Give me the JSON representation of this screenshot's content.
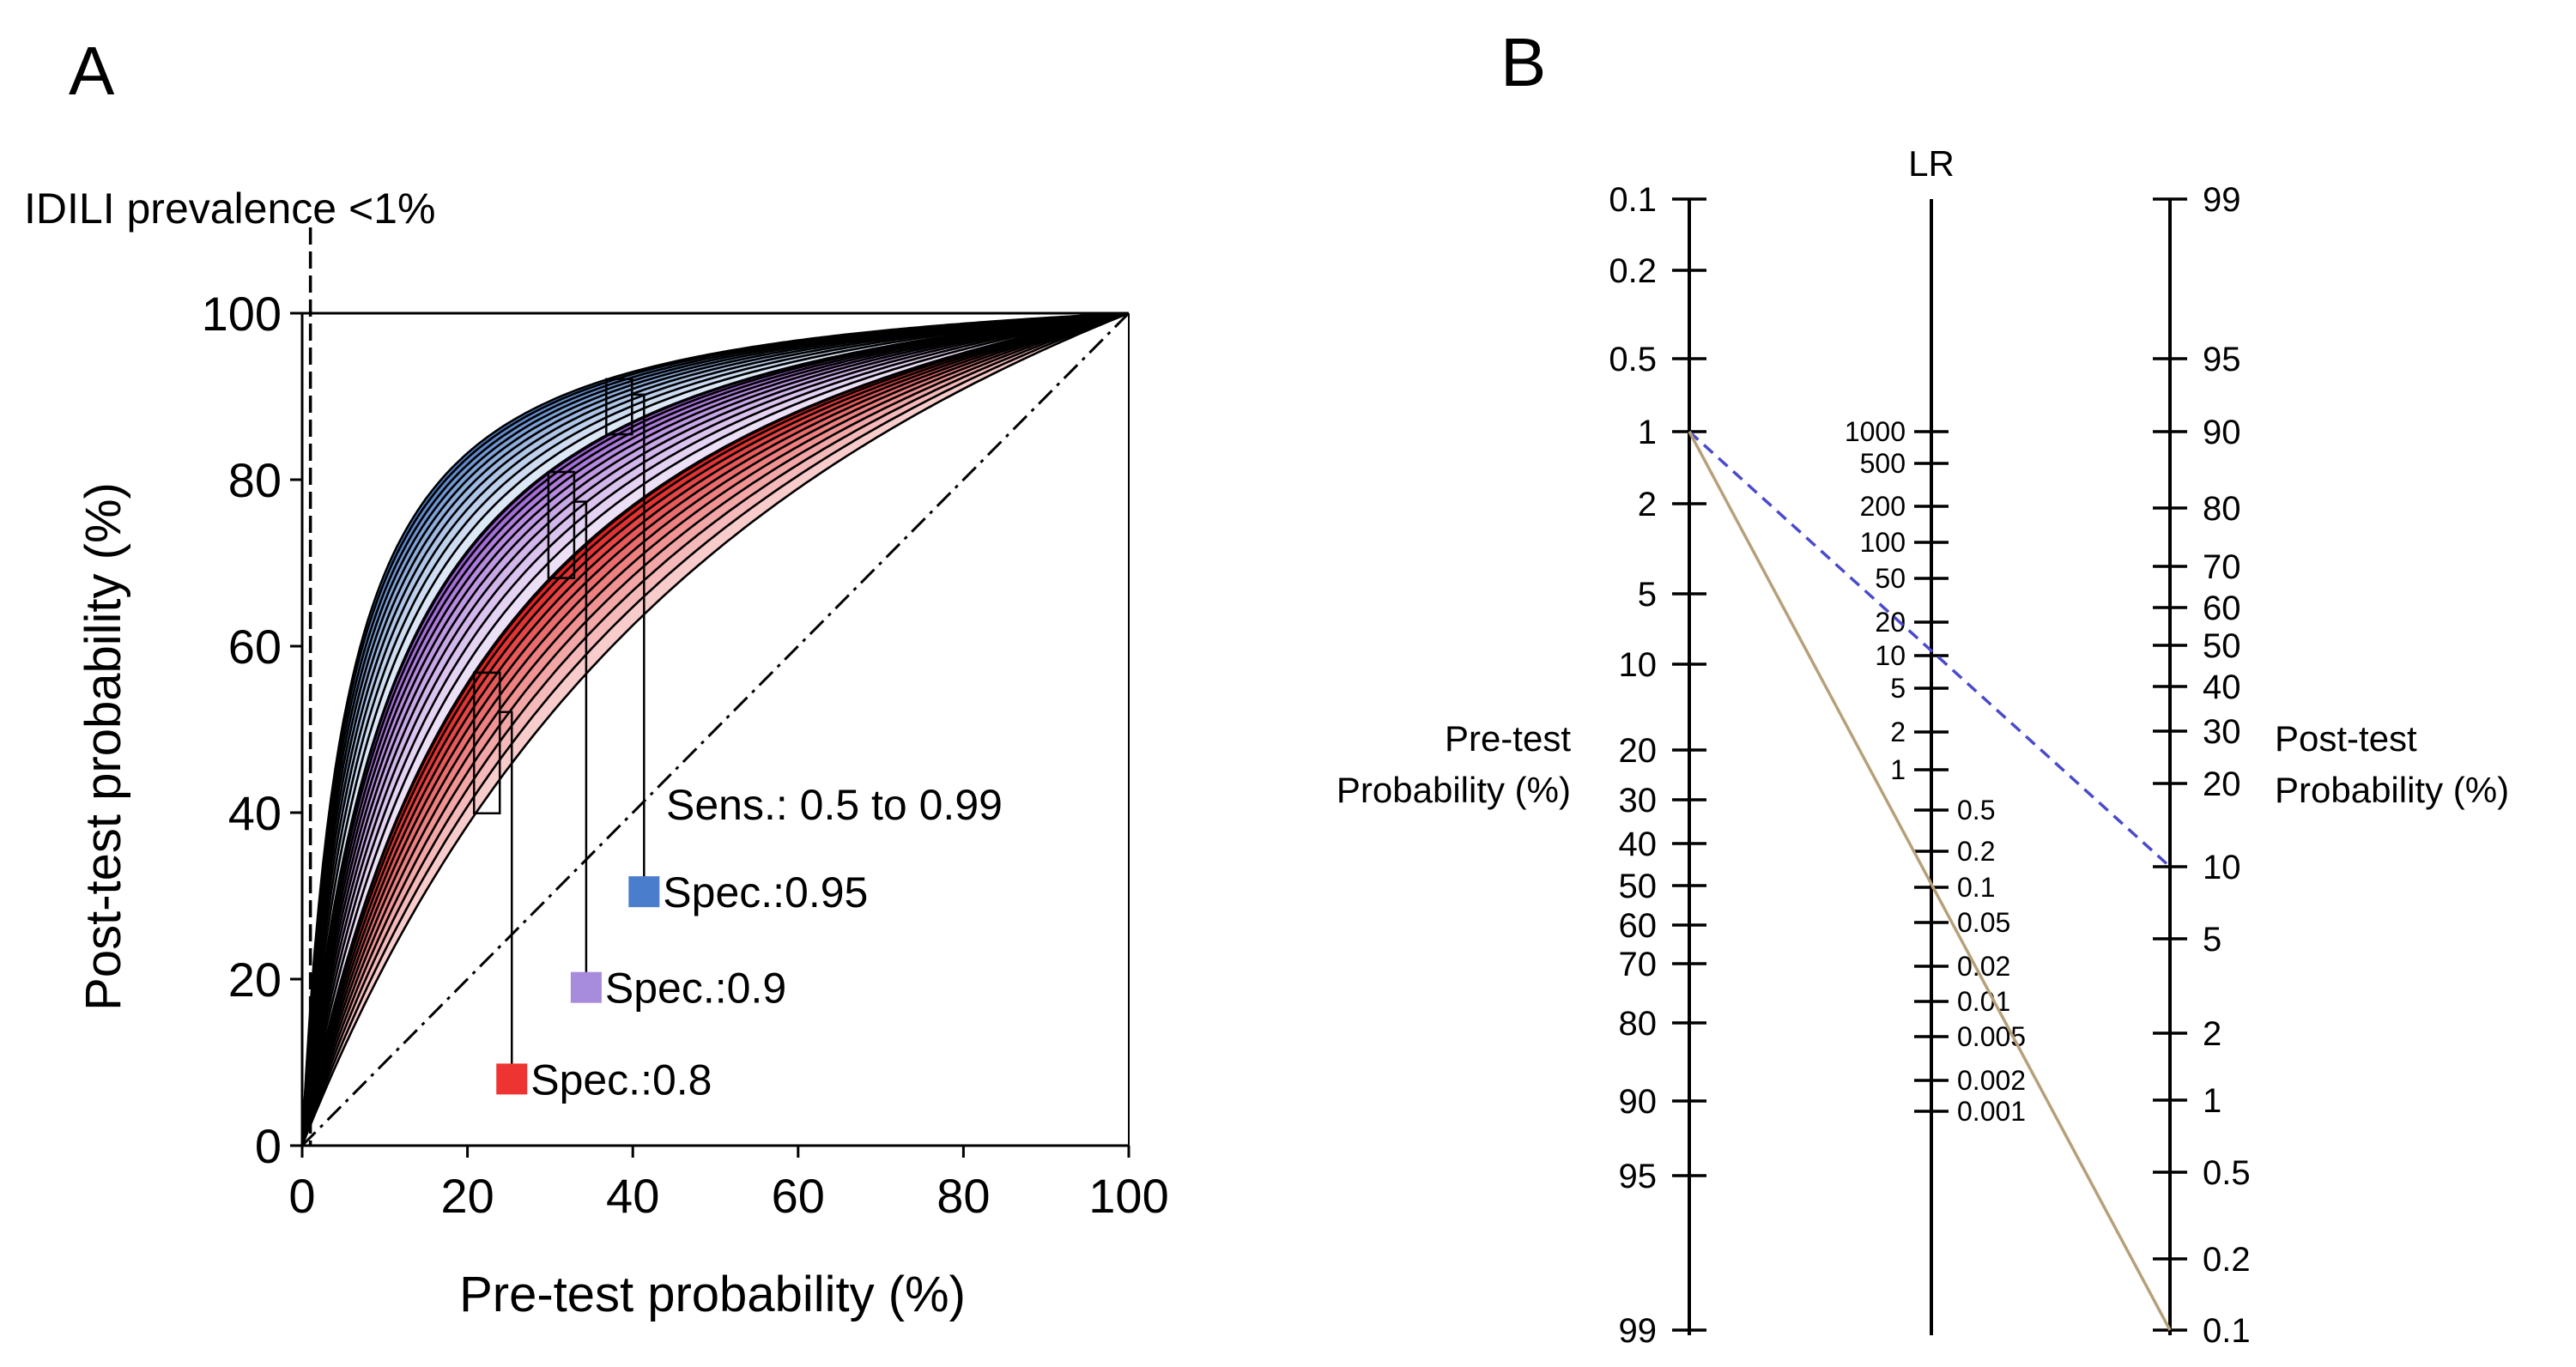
{
  "chart_data": [
    {
      "panel": "A",
      "type": "line",
      "title": "",
      "xlabel": "Pre-test probability (%)",
      "ylabel": "Post-test probability (%)",
      "xlim": [
        0,
        100
      ],
      "ylim": [
        0,
        100
      ],
      "xticks": [
        "0",
        "20",
        "40",
        "60",
        "80",
        "100"
      ],
      "yticks": [
        "0",
        "20",
        "40",
        "60",
        "80",
        "100"
      ],
      "annotations": {
        "prevalence": "IDILI prevalence <1%",
        "prevalence_x": 1,
        "sens_range": "Sens.: 0.5 to 0.99"
      },
      "sensitivities": [
        0.5,
        0.55,
        0.6,
        0.65,
        0.7,
        0.75,
        0.8,
        0.85,
        0.9,
        0.95,
        0.99
      ],
      "series": [
        {
          "name": "Spec.:0.95",
          "specificity": 0.95,
          "gradient_light": "#dde8f6",
          "gradient_dark": "#4f7fc8",
          "legend_color": "#4a7dcc",
          "bracket_x": 37,
          "label_y": 30.5
        },
        {
          "name": "Spec.:0.9",
          "specificity": 0.9,
          "gradient_light": "#ece0f6",
          "gradient_dark": "#9b5fd4",
          "legend_color": "#a78bdc",
          "bracket_x": 30,
          "label_y": 19
        },
        {
          "name": "Spec.:0.8",
          "specificity": 0.8,
          "gradient_light": "#f9cccc",
          "gradient_dark": "#e02020",
          "legend_color": "#ee3333",
          "bracket_x": 21,
          "label_y": 8
        }
      ],
      "reference_lines": [
        "x = y diagonal",
        "y = 100 (perfect test)"
      ]
    },
    {
      "panel": "B",
      "type": "nomogram",
      "pre_test_label": [
        "Pre-test",
        "Probability (%)"
      ],
      "post_test_label": [
        "Post-test",
        "Probability (%)"
      ],
      "lr_label": "LR",
      "pre_test_ticks": [
        0.1,
        0.2,
        0.5,
        1,
        2,
        5,
        10,
        20,
        30,
        40,
        50,
        60,
        70,
        80,
        90,
        95,
        99
      ],
      "lr_ticks_left": [
        1000,
        500,
        200,
        100,
        50,
        20,
        10,
        5,
        2,
        1
      ],
      "lr_ticks_right": [
        0.5,
        0.2,
        0.1,
        0.05,
        0.02,
        0.01,
        0.005,
        0.002,
        0.001
      ],
      "post_test_ticks": [
        99,
        95,
        90,
        80,
        70,
        60,
        50,
        40,
        30,
        20,
        10,
        5,
        2,
        1,
        0.5,
        0.2,
        0.1
      ],
      "lines": [
        {
          "name": "positive-LR line",
          "color": "#4a4acc",
          "dash": true,
          "pre_test": 1,
          "post_test": 10
        },
        {
          "name": "negative-LR line",
          "color": "#b7a079",
          "dash": false,
          "pre_test": 1,
          "post_test": 0.1
        }
      ]
    }
  ]
}
